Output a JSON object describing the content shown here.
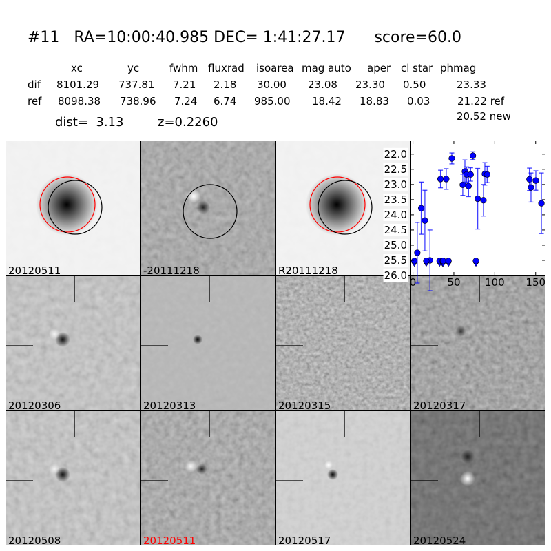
{
  "title": "#11   RA=10:00:40.985 DEC= 1:41:27.17      score=60.0",
  "table": {
    "headers": [
      "xc",
      "yc",
      "fwhm",
      "fluxrad",
      "isoarea",
      "mag auto",
      "aper",
      "cl star",
      "phmag"
    ],
    "rows": [
      {
        "label": "dif",
        "values": [
          "8101.29",
          "737.81",
          "7.21",
          "2.18",
          "30.00",
          "23.08",
          "23.30",
          "0.50",
          "23.33"
        ]
      },
      {
        "label": "ref",
        "values": [
          "8098.38",
          "738.96",
          "7.24",
          "6.74",
          "985.00",
          "18.42",
          "18.83",
          "0.03",
          "21.22 ref"
        ]
      }
    ],
    "extra_phmag": "20.52 new",
    "dist": "dist=  3.13",
    "z": "z=0.2260"
  },
  "stamps": [
    {
      "label": "20120511",
      "style": "galaxy",
      "circles": [
        "red",
        "black"
      ]
    },
    {
      "label": "-20111218",
      "style": "diff",
      "circles": [
        "black"
      ]
    },
    {
      "label": "R20111218",
      "style": "galaxy",
      "circles": [
        "red",
        "black"
      ]
    },
    {
      "label": "20120306",
      "style": "noise-light"
    },
    {
      "label": "20120313",
      "style": "smooth"
    },
    {
      "label": "20120315",
      "style": "noise-hard"
    },
    {
      "label": "20120317",
      "style": "noise-dark"
    },
    {
      "label": "20120508",
      "style": "noise-light"
    },
    {
      "label": "20120511",
      "style": "noise-mid",
      "label_color": "#ff0000"
    },
    {
      "label": "20120517",
      "style": "smooth-light"
    },
    {
      "label": "20120524",
      "style": "dark"
    }
  ],
  "chart_data": {
    "type": "scatter",
    "title": "",
    "xlabel": "",
    "ylabel": "",
    "xlim": [
      -3,
      162
    ],
    "ylim": [
      26.0,
      21.55
    ],
    "y_inverted": true,
    "xticks": [
      "0",
      "50",
      "100",
      "150"
    ],
    "yticks": [
      "22.0",
      "22.5",
      "23.0",
      "23.5",
      "24.0",
      "24.5",
      "25.0",
      "25.5",
      "26.0"
    ],
    "marker_color": "#0000ff",
    "points": [
      {
        "x": 5.3,
        "y": 25.25,
        "err": 1.0
      },
      {
        "x": 10.1,
        "y": 23.78,
        "err": 0.86
      },
      {
        "x": 14.6,
        "y": 24.19,
        "err": 1.0
      },
      {
        "x": 20.8,
        "y": 25.5,
        "err": 1.0
      },
      {
        "x": 33.7,
        "y": 22.82,
        "err": 0.29
      },
      {
        "x": 40.7,
        "y": 22.82,
        "err": 0.34
      },
      {
        "x": 47.5,
        "y": 22.14,
        "err": 0.18
      },
      {
        "x": 60.9,
        "y": 23.01,
        "err": 0.35
      },
      {
        "x": 63.5,
        "y": 22.57,
        "err": 0.38
      },
      {
        "x": 65.7,
        "y": 22.67,
        "err": 0.25
      },
      {
        "x": 68.0,
        "y": 23.05,
        "err": 0.35
      },
      {
        "x": 70.5,
        "y": 22.67,
        "err": 0.22
      },
      {
        "x": 73.3,
        "y": 22.05,
        "err": 0.13
      },
      {
        "x": 79.2,
        "y": 23.47,
        "err": 1.0
      },
      {
        "x": 86.2,
        "y": 23.52,
        "err": 0.52
      },
      {
        "x": 87.9,
        "y": 22.65,
        "err": 0.37
      },
      {
        "x": 90.7,
        "y": 22.67,
        "err": 0.27
      },
      {
        "x": 142.4,
        "y": 22.83,
        "err": 0.37
      },
      {
        "x": 144.3,
        "y": 23.1,
        "err": 0.48
      },
      {
        "x": 150.2,
        "y": 22.87,
        "err": 0.32
      },
      {
        "x": 157.0,
        "y": 23.62,
        "err": 1.0
      }
    ],
    "upper_limits": [
      {
        "x": 1.7,
        "y": 25.52
      },
      {
        "x": 16.3,
        "y": 25.52
      },
      {
        "x": 32.6,
        "y": 25.52
      },
      {
        "x": 36.2,
        "y": 25.52
      },
      {
        "x": 37.0,
        "y": 25.52
      },
      {
        "x": 43.5,
        "y": 25.52
      },
      {
        "x": 77.0,
        "y": 25.52
      }
    ]
  }
}
